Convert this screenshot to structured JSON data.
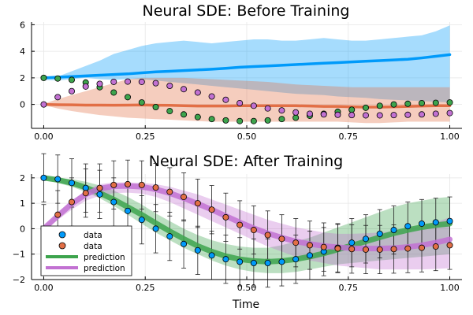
{
  "colors": {
    "blue": "#009AFA",
    "orange": "#E26F46",
    "green": "#3DA44D",
    "purple": "#C271D2",
    "grid": "#e6e6e6",
    "axis": "#000000",
    "errorbar": "#222222"
  },
  "chart_data": [
    {
      "type": "line",
      "title": "Neural SDE: Before Training",
      "xlabel": "",
      "ylabel": "",
      "xlim": [
        -0.03,
        1.03
      ],
      "ylim": [
        -1.8,
        6.2
      ],
      "xticks": [
        0.0,
        0.25,
        0.5,
        0.75,
        1.0
      ],
      "xtick_labels": [
        "0.00",
        "0.25",
        "0.50",
        "0.75",
        "1.00"
      ],
      "yticks": [
        0,
        2,
        4,
        6
      ],
      "ytick_labels": [
        "0",
        "2",
        "4",
        "6"
      ],
      "grid": true,
      "legend": "none",
      "x": [
        0.0,
        0.0345,
        0.069,
        0.1034,
        0.1379,
        0.1724,
        0.2069,
        0.2414,
        0.2759,
        0.3103,
        0.3448,
        0.3793,
        0.4138,
        0.4483,
        0.4828,
        0.5172,
        0.5517,
        0.5862,
        0.6207,
        0.6552,
        0.6897,
        0.7241,
        0.7586,
        0.7931,
        0.8276,
        0.8621,
        0.8966,
        0.931,
        0.9655,
        1.0
      ],
      "series": [
        {
          "kind": "band",
          "color": "#009AFA",
          "lower": [
            1.85,
            1.8,
            1.9,
            2.0,
            1.9,
            1.85,
            1.9,
            1.9,
            1.8,
            1.7,
            1.6,
            1.5,
            1.4,
            1.3,
            1.2,
            1.1,
            1.0,
            0.9,
            0.8,
            0.75,
            0.7,
            0.6,
            0.55,
            0.5,
            0.4,
            0.35,
            0.3,
            0.25,
            0.2,
            0.15
          ],
          "upper": [
            2.0,
            2.1,
            2.5,
            2.9,
            3.3,
            3.8,
            4.1,
            4.4,
            4.6,
            4.7,
            4.8,
            4.7,
            4.6,
            4.7,
            4.8,
            4.9,
            4.9,
            4.8,
            4.8,
            4.9,
            5.0,
            4.9,
            4.8,
            4.8,
            4.9,
            5.0,
            5.1,
            5.2,
            5.5,
            5.95
          ]
        },
        {
          "kind": "band",
          "color": "#E26F46",
          "lower": [
            -0.05,
            -0.3,
            -0.5,
            -0.65,
            -0.8,
            -0.9,
            -1.0,
            -1.05,
            -1.1,
            -1.15,
            -1.2,
            -1.25,
            -1.3,
            -1.3,
            -1.3,
            -1.3,
            -1.3,
            -1.3,
            -1.3,
            -1.3,
            -1.3,
            -1.3,
            -1.35,
            -1.4,
            -1.4,
            -1.35,
            -1.3,
            -1.3,
            -1.3,
            -1.3
          ],
          "upper": [
            0.05,
            0.4,
            0.7,
            1.0,
            1.3,
            1.6,
            1.9,
            2.0,
            2.0,
            2.0,
            2.0,
            1.95,
            1.9,
            1.85,
            1.8,
            1.75,
            1.7,
            1.6,
            1.5,
            1.45,
            1.4,
            1.35,
            1.3,
            1.3,
            1.3,
            1.3,
            1.3,
            1.3,
            1.3,
            1.3
          ]
        },
        {
          "kind": "line",
          "color": "#009AFA",
          "values": [
            2.0,
            2.05,
            2.1,
            2.15,
            2.2,
            2.25,
            2.3,
            2.38,
            2.45,
            2.5,
            2.55,
            2.6,
            2.65,
            2.72,
            2.8,
            2.85,
            2.9,
            2.95,
            3.0,
            3.05,
            3.1,
            3.15,
            3.2,
            3.25,
            3.3,
            3.35,
            3.4,
            3.5,
            3.62,
            3.75
          ]
        },
        {
          "kind": "line",
          "color": "#E26F46",
          "values": [
            0.0,
            -0.02,
            -0.03,
            -0.05,
            -0.05,
            -0.06,
            -0.05,
            -0.04,
            -0.06,
            -0.07,
            -0.1,
            -0.12,
            -0.12,
            -0.12,
            -0.1,
            -0.1,
            -0.1,
            -0.1,
            -0.1,
            -0.12,
            -0.15,
            -0.15,
            -0.18,
            -0.2,
            -0.2,
            -0.18,
            -0.15,
            -0.12,
            -0.1,
            -0.1
          ]
        },
        {
          "kind": "scatter",
          "color": "#3DA44D",
          "values": [
            2.0,
            1.95,
            1.85,
            1.65,
            1.3,
            0.9,
            0.55,
            0.15,
            -0.2,
            -0.5,
            -0.75,
            -0.95,
            -1.1,
            -1.2,
            -1.25,
            -1.25,
            -1.2,
            -1.1,
            -1.0,
            -0.85,
            -0.7,
            -0.55,
            -0.4,
            -0.25,
            -0.1,
            0.0,
            0.05,
            0.1,
            0.12,
            0.15
          ]
        },
        {
          "kind": "scatter",
          "color": "#C271D2",
          "values": [
            0.0,
            0.55,
            1.0,
            1.35,
            1.55,
            1.7,
            1.72,
            1.7,
            1.6,
            1.4,
            1.15,
            0.9,
            0.6,
            0.35,
            0.1,
            -0.1,
            -0.3,
            -0.45,
            -0.6,
            -0.7,
            -0.75,
            -0.78,
            -0.8,
            -0.82,
            -0.82,
            -0.8,
            -0.78,
            -0.75,
            -0.7,
            -0.65
          ]
        }
      ]
    },
    {
      "type": "line",
      "title": "Neural SDE: After Training",
      "xlabel": "Time",
      "ylabel": "",
      "xlim": [
        -0.03,
        1.03
      ],
      "ylim": [
        -2.0,
        2.15
      ],
      "xticks": [
        0.0,
        0.25,
        0.5,
        0.75,
        1.0
      ],
      "xtick_labels": [
        "0.00",
        "0.25",
        "0.50",
        "0.75",
        "1.00"
      ],
      "yticks": [
        -2,
        -1,
        0,
        1,
        2
      ],
      "ytick_labels": [
        "−2",
        "−1",
        "0",
        "1",
        "2"
      ],
      "grid": true,
      "legend": "bottom-left",
      "legend_entries": [
        {
          "label": "data",
          "kind": "marker",
          "color": "#009AFA"
        },
        {
          "label": "data",
          "kind": "marker",
          "color": "#E26F46"
        },
        {
          "label": "prediction",
          "kind": "line",
          "color": "#3DA44D"
        },
        {
          "label": "prediction",
          "kind": "line",
          "color": "#C271D2"
        }
      ],
      "x": [
        0.0,
        0.0345,
        0.069,
        0.1034,
        0.1379,
        0.1724,
        0.2069,
        0.2414,
        0.2759,
        0.3103,
        0.3448,
        0.3793,
        0.4138,
        0.4483,
        0.4828,
        0.5172,
        0.5517,
        0.5862,
        0.6207,
        0.6552,
        0.6897,
        0.7241,
        0.7586,
        0.7931,
        0.8276,
        0.8621,
        0.8966,
        0.931,
        0.9655,
        1.0
      ],
      "series": [
        {
          "kind": "band",
          "color": "#3DA44D",
          "lower": [
            1.95,
            1.8,
            1.65,
            1.45,
            1.2,
            0.9,
            0.55,
            0.2,
            -0.15,
            -0.45,
            -0.75,
            -1.0,
            -1.25,
            -1.45,
            -1.6,
            -1.7,
            -1.75,
            -1.75,
            -1.7,
            -1.6,
            -1.5,
            -1.4,
            -1.35,
            -1.3,
            -1.25,
            -1.2,
            -1.15,
            -1.1,
            -1.05,
            -1.0
          ],
          "upper": [
            2.05,
            2.0,
            1.95,
            1.85,
            1.7,
            1.5,
            1.25,
            0.95,
            0.6,
            0.3,
            0.0,
            -0.25,
            -0.45,
            -0.6,
            -0.7,
            -0.75,
            -0.75,
            -0.65,
            -0.5,
            -0.35,
            -0.15,
            0.05,
            0.25,
            0.45,
            0.65,
            0.85,
            1.0,
            1.1,
            1.2,
            1.25
          ]
        },
        {
          "kind": "band",
          "color": "#C271D2",
          "lower": [
            -0.05,
            0.35,
            0.75,
            1.1,
            1.3,
            1.4,
            1.42,
            1.38,
            1.25,
            1.05,
            0.8,
            0.55,
            0.3,
            0.05,
            -0.2,
            -0.45,
            -0.7,
            -0.9,
            -1.1,
            -1.25,
            -1.35,
            -1.45,
            -1.5,
            -1.55,
            -1.6,
            -1.6,
            -1.6,
            -1.6,
            -1.58,
            -1.55
          ],
          "upper": [
            0.05,
            0.6,
            1.1,
            1.5,
            1.75,
            1.82,
            1.82,
            1.8,
            1.75,
            1.65,
            1.5,
            1.35,
            1.15,
            0.95,
            0.75,
            0.55,
            0.35,
            0.2,
            0.05,
            -0.05,
            -0.15,
            -0.2,
            -0.2,
            -0.18,
            -0.15,
            -0.1,
            0.0,
            0.1,
            0.25,
            0.45
          ]
        },
        {
          "kind": "line",
          "color": "#3DA44D",
          "width": 7,
          "values": [
            2.0,
            1.92,
            1.8,
            1.62,
            1.4,
            1.15,
            0.85,
            0.55,
            0.22,
            -0.1,
            -0.4,
            -0.68,
            -0.9,
            -1.08,
            -1.2,
            -1.27,
            -1.3,
            -1.27,
            -1.2,
            -1.1,
            -0.97,
            -0.82,
            -0.66,
            -0.5,
            -0.34,
            -0.18,
            -0.05,
            0.06,
            0.14,
            0.2
          ]
        },
        {
          "kind": "line",
          "color": "#C271D2",
          "width": 7,
          "values": [
            0.0,
            0.5,
            0.98,
            1.35,
            1.58,
            1.67,
            1.68,
            1.65,
            1.55,
            1.4,
            1.2,
            0.98,
            0.75,
            0.5,
            0.25,
            0.02,
            -0.18,
            -0.35,
            -0.5,
            -0.6,
            -0.68,
            -0.73,
            -0.77,
            -0.78,
            -0.78,
            -0.76,
            -0.72,
            -0.65,
            -0.55,
            -0.42
          ]
        },
        {
          "kind": "scatter",
          "color": "#009AFA",
          "errorbar": 0.95,
          "values": [
            2.0,
            1.95,
            1.8,
            1.6,
            1.35,
            1.05,
            0.7,
            0.35,
            0.0,
            -0.3,
            -0.6,
            -0.85,
            -1.05,
            -1.2,
            -1.3,
            -1.35,
            -1.35,
            -1.3,
            -1.2,
            -1.05,
            -0.9,
            -0.75,
            -0.55,
            -0.4,
            -0.2,
            -0.05,
            0.1,
            0.2,
            0.25,
            0.3
          ]
        },
        {
          "kind": "scatter",
          "color": "#E26F46",
          "errorbar": 0.95,
          "values": [
            0.0,
            0.55,
            1.05,
            1.4,
            1.6,
            1.72,
            1.75,
            1.72,
            1.62,
            1.45,
            1.25,
            1.0,
            0.75,
            0.45,
            0.15,
            -0.05,
            -0.25,
            -0.4,
            -0.55,
            -0.65,
            -0.72,
            -0.78,
            -0.8,
            -0.82,
            -0.82,
            -0.8,
            -0.78,
            -0.75,
            -0.7,
            -0.65
          ]
        }
      ]
    }
  ]
}
